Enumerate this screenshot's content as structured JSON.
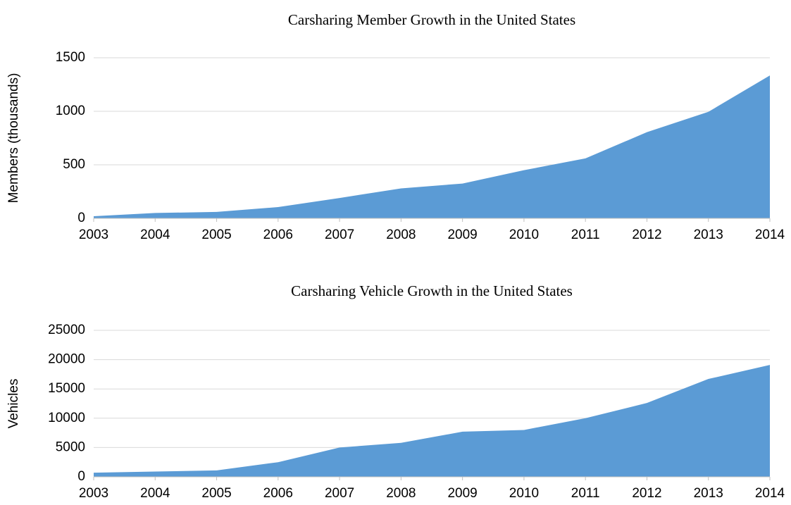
{
  "chart_data": [
    {
      "type": "area",
      "title": "Carsharing Member Growth in the United States",
      "y_label": "Members (thousands)",
      "x": [
        2003,
        2004,
        2005,
        2006,
        2007,
        2008,
        2009,
        2010,
        2011,
        2012,
        2013,
        2014
      ],
      "values": [
        20,
        50,
        60,
        105,
        190,
        280,
        325,
        450,
        560,
        805,
        995,
        1335
      ],
      "color": "#5b9bd5",
      "xlim": [
        2003,
        2014
      ],
      "xticks": [
        2003,
        2004,
        2005,
        2006,
        2007,
        2008,
        2009,
        2010,
        2011,
        2012,
        2013,
        2014
      ],
      "ylim": [
        0,
        1500
      ],
      "yticks": [
        0,
        500,
        1000,
        1500
      ],
      "grid": true
    },
    {
      "type": "area",
      "title": "Carsharing Vehicle Growth in the United States",
      "y_label": "Vehicles",
      "x": [
        2003,
        2004,
        2005,
        2006,
        2007,
        2008,
        2009,
        2010,
        2011,
        2012,
        2013,
        2014
      ],
      "values": [
        700,
        900,
        1100,
        2500,
        5000,
        5800,
        7700,
        8000,
        10000,
        12600,
        16700,
        19100
      ],
      "color": "#5b9bd5",
      "xlim": [
        2003,
        2014
      ],
      "xticks": [
        2003,
        2004,
        2005,
        2006,
        2007,
        2008,
        2009,
        2010,
        2011,
        2012,
        2013,
        2014
      ],
      "ylim": [
        0,
        25000
      ],
      "yticks": [
        0,
        5000,
        10000,
        15000,
        20000,
        25000
      ],
      "grid": true
    }
  ]
}
